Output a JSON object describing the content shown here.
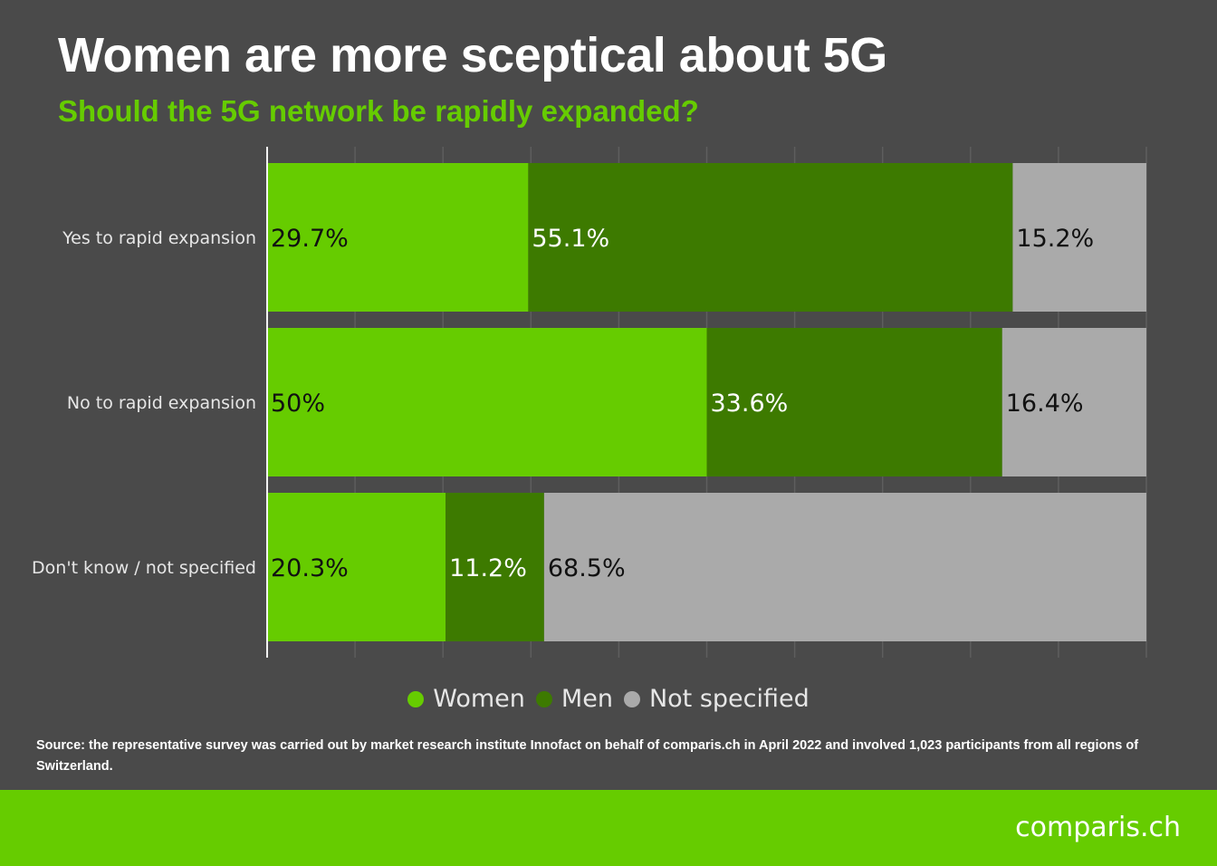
{
  "title": "Women are more sceptical about 5G",
  "subtitle": "Should the 5G network be rapidly expanded?",
  "colors": {
    "background": "#4a4a4a",
    "accent": "#66cc00",
    "women": "#66cc00",
    "men": "#3d7a00",
    "not_specified": "#aaaaaa"
  },
  "chart_data": {
    "type": "bar",
    "orientation": "horizontal",
    "stacked": true,
    "normalized": true,
    "title": "Women are more sceptical about 5G",
    "subtitle": "Should the 5G network be rapidly expanded?",
    "categories": [
      "Yes to rapid expansion",
      "No to rapid expansion",
      "Don't know / not specified"
    ],
    "series": [
      {
        "name": "Women",
        "values": [
          29.7,
          50,
          20.3
        ],
        "labels": [
          "29.7%",
          "50%",
          "20.3%"
        ],
        "color": "#66cc00"
      },
      {
        "name": "Men",
        "values": [
          55.1,
          33.6,
          11.2
        ],
        "labels": [
          "55.1%",
          "33.6%",
          "11.2%"
        ],
        "color": "#3d7a00"
      },
      {
        "name": "Not specified",
        "values": [
          15.2,
          16.4,
          68.5
        ],
        "labels": [
          "15.2%",
          "16.4%",
          "68.5%"
        ],
        "color": "#aaaaaa"
      }
    ],
    "xlim": [
      0,
      100
    ],
    "grid": true,
    "legend": "bottom-center"
  },
  "legend": {
    "items": [
      "Women",
      "Men",
      "Not specified"
    ]
  },
  "source": "Source: the representative survey was carried out by market research institute Innofact on behalf of comparis.ch in April 2022 and involved 1,023 participants from all regions of Switzerland.",
  "brand": "comparis.ch"
}
